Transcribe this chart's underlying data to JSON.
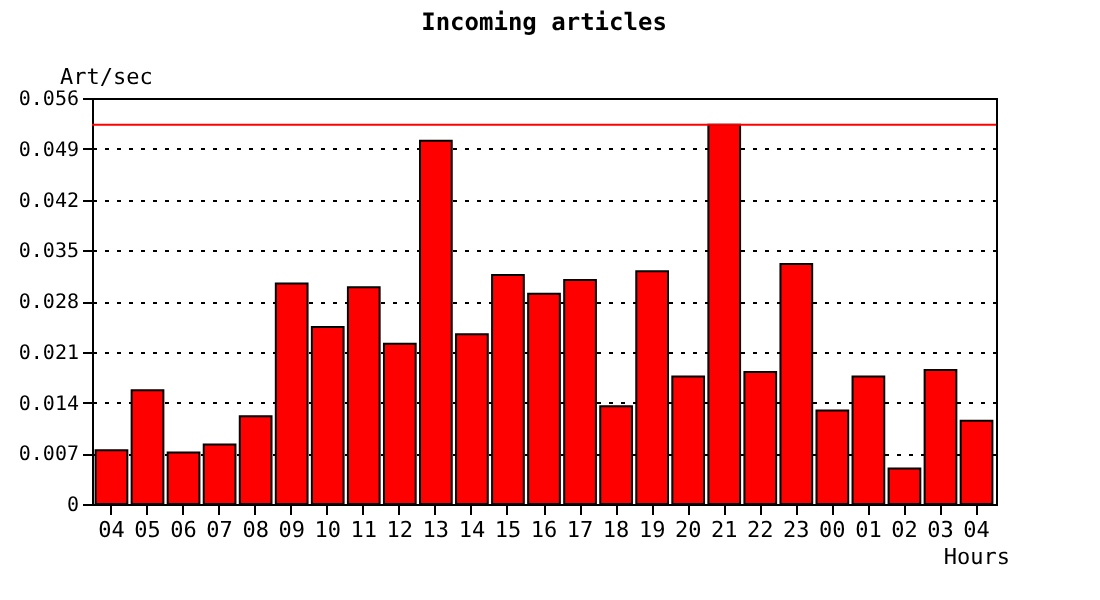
{
  "chart_data": {
    "type": "bar",
    "title": "Incoming articles",
    "ylabel": "Art/sec",
    "xlabel": "Hours",
    "categories": [
      "04",
      "05",
      "06",
      "07",
      "08",
      "09",
      "10",
      "11",
      "12",
      "13",
      "14",
      "15",
      "16",
      "17",
      "18",
      "19",
      "20",
      "21",
      "22",
      "23",
      "00",
      "01",
      "02",
      "03",
      "04"
    ],
    "values": [
      0.0074,
      0.0157,
      0.0071,
      0.0082,
      0.0121,
      0.0304,
      0.0244,
      0.0299,
      0.0221,
      0.0501,
      0.0234,
      0.0316,
      0.029,
      0.0309,
      0.0135,
      0.0321,
      0.0176,
      0.0523,
      0.0182,
      0.0331,
      0.0129,
      0.0176,
      0.0049,
      0.0185,
      0.0115
    ],
    "color": "#ff0000",
    "ylim": [
      0,
      0.056
    ],
    "yticks": [
      0,
      0.007,
      0.014,
      0.021,
      0.028,
      0.035,
      0.042,
      0.049,
      0.056
    ],
    "grid": "y",
    "ref_lines": [
      {
        "axis": "y",
        "value": 0.0523,
        "color": "#ff0000"
      }
    ]
  }
}
